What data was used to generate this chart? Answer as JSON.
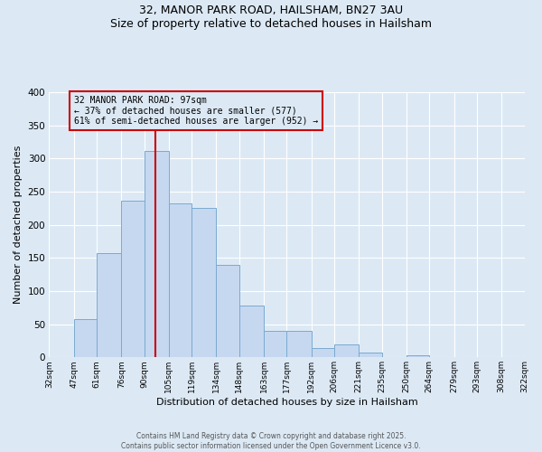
{
  "title_line1": "32, MANOR PARK ROAD, HAILSHAM, BN27 3AU",
  "title_line2": "Size of property relative to detached houses in Hailsham",
  "xlabel": "Distribution of detached houses by size in Hailsham",
  "ylabel": "Number of detached properties",
  "all_values": [
    0,
    58,
    157,
    236,
    311,
    232,
    226,
    140,
    78,
    40,
    40,
    14,
    19,
    7,
    0,
    3,
    0,
    0,
    0,
    0
  ],
  "bin_edges": [
    32,
    47,
    61,
    76,
    90,
    105,
    119,
    134,
    148,
    163,
    177,
    192,
    206,
    221,
    235,
    250,
    264,
    279,
    293,
    308,
    322
  ],
  "tick_labels": [
    "32sqm",
    "47sqm",
    "61sqm",
    "76sqm",
    "90sqm",
    "105sqm",
    "119sqm",
    "134sqm",
    "148sqm",
    "163sqm",
    "177sqm",
    "192sqm",
    "206sqm",
    "221sqm",
    "235sqm",
    "250sqm",
    "264sqm",
    "279sqm",
    "293sqm",
    "308sqm",
    "322sqm"
  ],
  "bar_color": "#c5d8f0",
  "bar_edge_color": "#7aaad0",
  "bg_color": "#dce9f5",
  "grid_color": "#ffffff",
  "vline_x": 97,
  "vline_color": "#cc0000",
  "annotation_text": "32 MANOR PARK ROAD: 97sqm\n← 37% of detached houses are smaller (577)\n61% of semi-detached houses are larger (952) →",
  "annotation_box_edge_color": "#cc0000",
  "ylim": [
    0,
    400
  ],
  "yticks": [
    0,
    50,
    100,
    150,
    200,
    250,
    300,
    350,
    400
  ],
  "footer_line1": "Contains HM Land Registry data © Crown copyright and database right 2025.",
  "footer_line2": "Contains public sector information licensed under the Open Government Licence v3.0."
}
